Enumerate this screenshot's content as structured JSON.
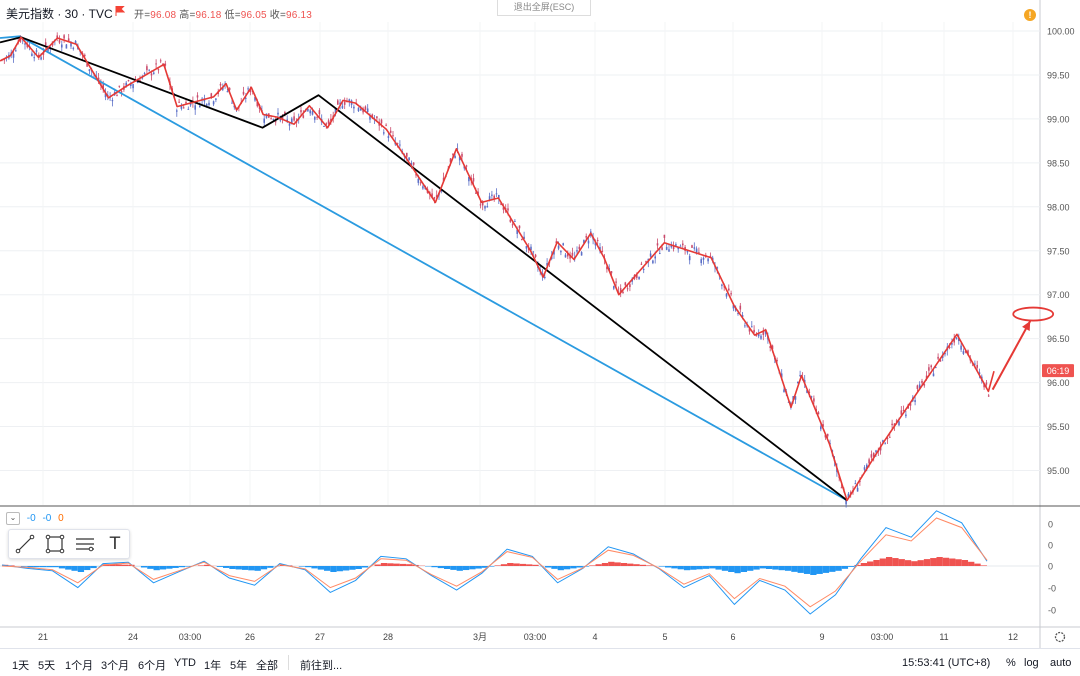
{
  "header": {
    "symbol": "美元指数 · 30 · TVC",
    "ohlc": [
      {
        "label": "开",
        "value": "96.08"
      },
      {
        "label": "高",
        "value": "96.18"
      },
      {
        "label": "低",
        "value": "96.05"
      },
      {
        "label": "收",
        "value": "96.13"
      }
    ],
    "exit_fullscreen": "退出全屏(ESC)",
    "alert_badge": "!"
  },
  "chart_data": [
    {
      "type": "line",
      "title": "美元指数 · 30 · TVC",
      "x_ticks": [
        "21",
        "24",
        "03:00",
        "26",
        "27",
        "28",
        "3月",
        "03:00",
        "4",
        "5",
        "6",
        "9",
        "03:00",
        "11",
        "12"
      ],
      "y_ticks": [
        "100.00",
        "99.50",
        "99.00",
        "98.50",
        "98.00",
        "97.50",
        "97.00",
        "96.50",
        "96.00",
        "95.50",
        "95.00"
      ],
      "ylim": [
        94.5,
        100.3
      ],
      "last_price_label": "06:19",
      "last_price": 96.13,
      "series": [
        {
          "name": "",
          "color": "#e53935",
          "points": [
            [
              0.0,
              99.66
            ],
            [
              0.015,
              99.72
            ],
            [
              0.03,
              99.93
            ],
            [
              0.055,
              99.7
            ],
            [
              0.082,
              99.92
            ],
            [
              0.109,
              99.85
            ],
            [
              0.155,
              99.24
            ],
            [
              0.18,
              99.37
            ],
            [
              0.234,
              99.62
            ],
            [
              0.253,
              99.14
            ],
            [
              0.305,
              99.25
            ],
            [
              0.323,
              99.4
            ],
            [
              0.338,
              99.1
            ],
            [
              0.359,
              99.36
            ],
            [
              0.376,
              99.05
            ],
            [
              0.396,
              99.02
            ],
            [
              0.42,
              98.94
            ],
            [
              0.442,
              99.15
            ],
            [
              0.468,
              98.9
            ],
            [
              0.49,
              99.21
            ],
            [
              0.508,
              99.18
            ],
            [
              0.552,
              98.88
            ],
            [
              0.578,
              98.58
            ],
            [
              0.622,
              98.05
            ],
            [
              0.652,
              98.66
            ],
            [
              0.688,
              98.05
            ],
            [
              0.712,
              98.1
            ],
            [
              0.758,
              97.5
            ],
            [
              0.776,
              97.2
            ],
            [
              0.796,
              97.6
            ],
            [
              0.82,
              97.4
            ],
            [
              0.844,
              97.7
            ],
            [
              0.863,
              97.42
            ],
            [
              0.884,
              97.0
            ],
            [
              0.949,
              97.59
            ],
            [
              1.016,
              97.42
            ],
            [
              1.049,
              96.87
            ],
            [
              1.078,
              96.54
            ],
            [
              1.094,
              96.6
            ],
            [
              1.13,
              95.72
            ],
            [
              1.145,
              96.08
            ],
            [
              1.185,
              95.3
            ],
            [
              1.21,
              94.66
            ],
            [
              1.262,
              95.32
            ],
            [
              1.367,
              96.55
            ],
            [
              1.412,
              95.9
            ],
            [
              1.42,
              96.13
            ]
          ]
        },
        {
          "name": "",
          "color": "#000000",
          "points": [
            [
              0.0,
              99.87
            ],
            [
              0.03,
              99.93
            ],
            [
              0.375,
              98.9
            ],
            [
              0.455,
              99.27
            ],
            [
              1.21,
              94.66
            ]
          ]
        },
        {
          "name": "",
          "color": "#2b9be0",
          "points": [
            [
              0.0,
              99.92
            ],
            [
              0.028,
              99.94
            ],
            [
              1.21,
              94.66
            ]
          ]
        }
      ],
      "annotations": [
        {
          "type": "ellipse",
          "color": "#e53935",
          "x": 1.476,
          "y": 96.78
        },
        {
          "type": "arrow",
          "color": "#e53935",
          "from": [
            1.418,
            95.92
          ],
          "to": [
            1.476,
            96.78
          ]
        }
      ]
    },
    {
      "type": "area",
      "title": "",
      "indicator_values": [
        "-0",
        "-0",
        "0"
      ],
      "y_ticks": [
        "0",
        "0",
        "0",
        "-0",
        "-0"
      ],
      "histogram_colors": {
        "positive": "#ef5350",
        "negative": "#2196f3"
      },
      "series": [
        {
          "name": "",
          "color": "#2196f3",
          "values": [
            0.02,
            -0.05,
            -0.1,
            -0.45,
            0.05,
            0.08,
            -0.35,
            -0.12,
            0.1,
            -0.25,
            -0.4,
            0.05,
            -0.08,
            -0.55,
            -0.3,
            0.2,
            0.15,
            -0.2,
            -0.5,
            -0.15,
            0.35,
            0.2,
            -0.35,
            -0.05,
            0.4,
            0.25,
            -0.05,
            -0.45,
            -0.2,
            -0.8,
            -0.3,
            -0.5,
            -1.0,
            -0.6,
            0.15,
            0.8,
            0.6,
            1.15,
            0.9,
            0.1
          ]
        },
        {
          "name": "",
          "color": "#ff8a65",
          "values": [
            0.0,
            -0.03,
            -0.08,
            -0.35,
            0.02,
            0.06,
            -0.28,
            -0.1,
            0.08,
            -0.2,
            -0.32,
            0.03,
            -0.06,
            -0.45,
            -0.25,
            0.15,
            0.12,
            -0.18,
            -0.42,
            -0.12,
            0.3,
            0.18,
            -0.28,
            -0.04,
            0.33,
            0.22,
            -0.04,
            -0.38,
            -0.16,
            -0.68,
            -0.26,
            -0.42,
            -0.85,
            -0.52,
            0.1,
            0.65,
            0.52,
            1.0,
            0.8,
            0.12
          ]
        }
      ]
    }
  ],
  "toolbar": {
    "tools": [
      "trend-line-tool",
      "rectangle-tool",
      "fib-tool",
      "text-tool"
    ],
    "text_glyph": "T"
  },
  "bottom": {
    "ranges": [
      "1天",
      "5天",
      "1个月",
      "3个月",
      "6个月",
      "YTD",
      "1年",
      "5年",
      "全部"
    ],
    "goto": "前往到...",
    "clock": "15:53:41 (UTC+8)",
    "percent": "%",
    "log": "log",
    "auto": "auto"
  }
}
